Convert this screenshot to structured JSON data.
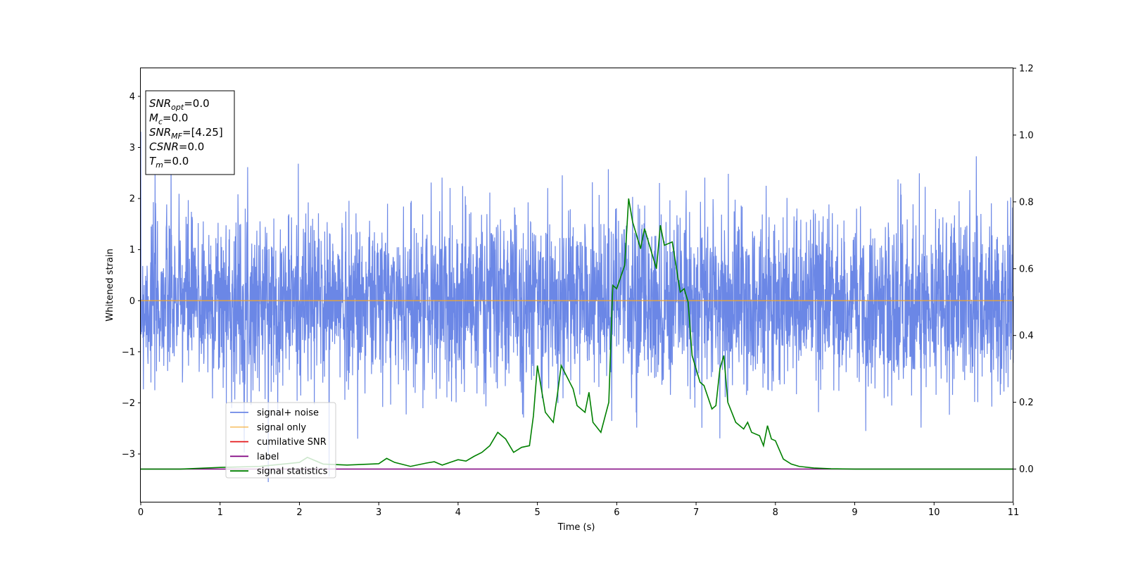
{
  "chart_data": {
    "type": "line",
    "xlabel": "Time (s)",
    "ylabel": "Whitened strain",
    "xlim": [
      0,
      11
    ],
    "ylim_left": [
      -3.95,
      4.55
    ],
    "ylim_right": [
      -0.1,
      1.2
    ],
    "x_ticks": [
      0,
      1,
      2,
      3,
      4,
      5,
      6,
      7,
      8,
      9,
      10,
      11
    ],
    "y_ticks_left": [
      -3,
      -2,
      -1,
      0,
      1,
      2,
      3,
      4
    ],
    "y_ticks_right": [
      0.0,
      0.2,
      0.4,
      0.6,
      0.8,
      1.0,
      1.2
    ],
    "legend_position": "lower-left",
    "colors": {
      "signal_noise": "#6b87e6",
      "signal_only": "#f5a623",
      "cumulative_snr": "#e41a1c",
      "label": "#800080",
      "signal_statistics": "#008000"
    },
    "series": [
      {
        "name": "signal+ noise",
        "axis": "left",
        "kind": "noise",
        "amplitude_std": 0.85,
        "range": [
          -3.55,
          4.15
        ]
      },
      {
        "name": "signal only",
        "axis": "left",
        "x": [
          0,
          11
        ],
        "y": [
          0,
          0
        ]
      },
      {
        "name": "cumilative SNR",
        "axis": "right",
        "x": [],
        "y": []
      },
      {
        "name": "label",
        "axis": "right",
        "x": [
          0,
          11
        ],
        "y": [
          0,
          0
        ]
      },
      {
        "name": "signal statistics",
        "axis": "right",
        "x": [
          0.0,
          0.5,
          1.0,
          1.5,
          2.0,
          2.1,
          2.3,
          2.6,
          3.0,
          3.1,
          3.2,
          3.4,
          3.6,
          3.7,
          3.8,
          3.9,
          4.0,
          4.1,
          4.2,
          4.3,
          4.4,
          4.5,
          4.6,
          4.7,
          4.8,
          4.9,
          4.95,
          5.0,
          5.1,
          5.2,
          5.25,
          5.3,
          5.45,
          5.5,
          5.6,
          5.65,
          5.7,
          5.8,
          5.9,
          5.95,
          6.0,
          6.1,
          6.15,
          6.2,
          6.3,
          6.35,
          6.5,
          6.55,
          6.6,
          6.7,
          6.8,
          6.85,
          6.9,
          6.95,
          7.0,
          7.05,
          7.1,
          7.2,
          7.25,
          7.3,
          7.35,
          7.4,
          7.5,
          7.6,
          7.65,
          7.7,
          7.8,
          7.85,
          7.9,
          7.95,
          8.0,
          8.1,
          8.2,
          8.3,
          8.5,
          8.7,
          9.0,
          11.0
        ],
        "y": [
          0.0,
          0.0,
          0.005,
          0.008,
          0.02,
          0.035,
          0.015,
          0.012,
          0.016,
          0.032,
          0.02,
          0.008,
          0.018,
          0.022,
          0.012,
          0.02,
          0.028,
          0.024,
          0.038,
          0.05,
          0.07,
          0.11,
          0.09,
          0.05,
          0.065,
          0.07,
          0.16,
          0.31,
          0.17,
          0.14,
          0.22,
          0.31,
          0.24,
          0.19,
          0.17,
          0.23,
          0.14,
          0.11,
          0.2,
          0.55,
          0.54,
          0.61,
          0.81,
          0.74,
          0.66,
          0.72,
          0.6,
          0.73,
          0.67,
          0.68,
          0.53,
          0.54,
          0.5,
          0.34,
          0.3,
          0.26,
          0.25,
          0.18,
          0.19,
          0.3,
          0.34,
          0.2,
          0.14,
          0.12,
          0.14,
          0.11,
          0.1,
          0.07,
          0.13,
          0.09,
          0.085,
          0.03,
          0.015,
          0.008,
          0.003,
          0.001,
          0.0,
          0.0
        ]
      }
    ],
    "annotation": {
      "lines": [
        {
          "base": "SNR",
          "sub": "opt",
          "value": "=0.0"
        },
        {
          "base": "M",
          "sub": "c",
          "value": "=0.0"
        },
        {
          "base": "SNR",
          "sub": "MF",
          "value": "=[4.25]"
        },
        {
          "base": "CSNR",
          "sub": "",
          "value": "=0.0"
        },
        {
          "base": "T",
          "sub": "m",
          "value": "=0.0"
        }
      ]
    }
  }
}
